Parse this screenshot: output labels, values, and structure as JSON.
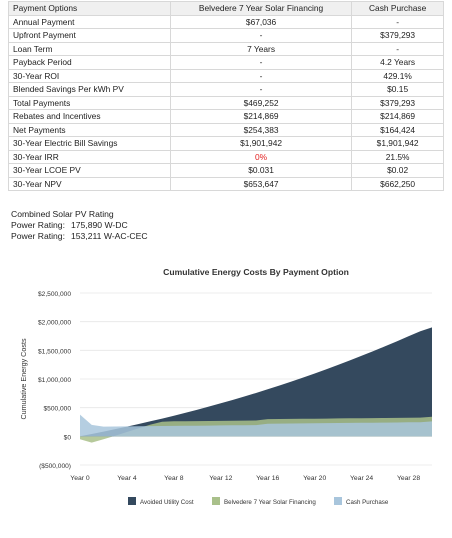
{
  "table": {
    "headers": [
      "Payment Options",
      "Belvedere 7 Year Solar Financing",
      "Cash Purchase"
    ],
    "rows": [
      [
        "Annual Payment",
        "$67,036",
        "-"
      ],
      [
        "Upfront Payment",
        "-",
        "$379,293"
      ],
      [
        "Loan Term",
        "7 Years",
        "-"
      ],
      [
        "Payback Period",
        "-",
        "4.2 Years"
      ],
      [
        "30-Year ROI",
        "-",
        "429.1%"
      ],
      [
        "Blended Savings Per kWh PV",
        "-",
        "$0.15"
      ],
      [
        "Total Payments",
        "$469,252",
        "$379,293"
      ],
      [
        "Rebates and Incentives",
        "$214,869",
        "$214,869"
      ],
      [
        "Net Payments",
        "$254,383",
        "$164,424"
      ],
      [
        "30-Year Electric Bill Savings",
        "$1,901,942",
        "$1,901,942"
      ],
      [
        "30-Year IRR",
        "0%",
        "21.5%"
      ],
      [
        "30-Year LCOE PV",
        "$0.031",
        "$0.02"
      ],
      [
        "30-Year NPV",
        "$653,647",
        "$662,250"
      ]
    ]
  },
  "rating": {
    "title": "Combined Solar PV Rating",
    "label": "Power Rating:",
    "dc": "175,890 W-DC",
    "ac": "153,211 W-AC-CEC"
  },
  "colors": {
    "avoided": "#34495e",
    "belvedere": "#a9c08a",
    "cash": "#a8c5dc",
    "irr_zero": "#e32222"
  },
  "chart_data": {
    "type": "area",
    "title": "Cumulative Energy Costs By Payment Option",
    "xlabel": "",
    "ylabel": "Cumulative Energy Costs",
    "x": [
      0,
      1,
      2,
      3,
      4,
      5,
      6,
      7,
      8,
      9,
      10,
      11,
      12,
      13,
      14,
      15,
      16,
      17,
      18,
      19,
      20,
      21,
      22,
      23,
      24,
      25,
      26,
      27,
      28,
      29,
      30
    ],
    "xticks": [
      "Year 0",
      "Year 4",
      "Year 8",
      "Year 12",
      "Year 16",
      "Year 20",
      "Year 24",
      "Year 28"
    ],
    "yticks": [
      "($500,000)",
      "$0",
      "$500,000",
      "$1,000,000",
      "$1,500,000",
      "$2,000,000",
      "$2,500,000"
    ],
    "ylim": [
      -500000,
      2500000
    ],
    "legend_position": "bottom",
    "series": [
      {
        "name": "Avoided Utility Cost",
        "color": "#34495e",
        "values": [
          0,
          40000,
          82000,
          126000,
          170000,
          215000,
          262000,
          310000,
          360000,
          412000,
          465000,
          520000,
          576000,
          634000,
          694000,
          756000,
          820000,
          886000,
          954000,
          1024000,
          1096000,
          1170000,
          1246000,
          1324000,
          1404000,
          1486000,
          1570000,
          1656000,
          1744000,
          1834000,
          1900000
        ]
      },
      {
        "name": "Belvedere 7 Year Solar Financing",
        "color": "#a9c08a",
        "values": [
          -50000,
          -110000,
          -50000,
          10000,
          75000,
          140000,
          205000,
          255000,
          262000,
          264000,
          266000,
          268000,
          270000,
          272000,
          274000,
          276000,
          300000,
          302000,
          304000,
          306000,
          308000,
          310000,
          312000,
          314000,
          316000,
          318000,
          320000,
          322000,
          324000,
          326000,
          340000
        ]
      },
      {
        "name": "Cash Purchase",
        "color": "#a8c5dc",
        "values": [
          379293,
          200000,
          170000,
          172000,
          174000,
          176000,
          178000,
          180000,
          182000,
          184000,
          186000,
          188000,
          190000,
          192000,
          194000,
          196000,
          220000,
          222000,
          224000,
          226000,
          228000,
          230000,
          232000,
          234000,
          236000,
          238000,
          240000,
          242000,
          244000,
          246000,
          260000
        ]
      }
    ]
  }
}
